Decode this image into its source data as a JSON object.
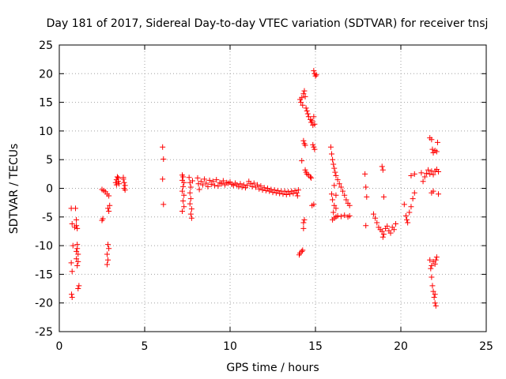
{
  "chart_data": {
    "type": "scatter",
    "title": "Day 181 of 2017, Sidereal Day-to-day VTEC variation (SDTVAR) for receiver tnsj",
    "xlabel": "GPS time / hours",
    "ylabel": "SDTVAR / TECUs",
    "xlim": [
      0,
      25
    ],
    "ylim": [
      -25,
      25
    ],
    "xticks": [
      0,
      5,
      10,
      15,
      20,
      25
    ],
    "yticks": [
      -25,
      -20,
      -15,
      -10,
      -5,
      0,
      5,
      10,
      15,
      20,
      25
    ],
    "grid": true,
    "marker": "+",
    "color": "#ff0000",
    "series": [
      {
        "name": "SDTVAR",
        "points": [
          [
            0.7,
            -3.5
          ],
          [
            0.75,
            -6.2
          ],
          [
            0.8,
            -10
          ],
          [
            0.7,
            -13
          ],
          [
            0.75,
            -14.5
          ],
          [
            0.72,
            -18.5
          ],
          [
            0.75,
            -19
          ],
          [
            0.95,
            -3.5
          ],
          [
            1.0,
            -5.5
          ],
          [
            1.0,
            -6.5
          ],
          [
            1.05,
            -7
          ],
          [
            0.9,
            -6.8
          ],
          [
            1.05,
            -10.5
          ],
          [
            1.1,
            -11.5
          ],
          [
            1.0,
            -12.3
          ],
          [
            1.1,
            -12.8
          ],
          [
            1.05,
            -13.5
          ],
          [
            1.15,
            -17
          ],
          [
            1.1,
            -17.5
          ],
          [
            1.05,
            -9.8
          ],
          [
            1.0,
            -11
          ],
          [
            2.5,
            -0.2
          ],
          [
            2.6,
            -0.4
          ],
          [
            2.7,
            -0.6
          ],
          [
            2.8,
            -1.0
          ],
          [
            2.9,
            -1.3
          ],
          [
            2.55,
            -5.3
          ],
          [
            2.5,
            -5.6
          ],
          [
            2.85,
            -3.5
          ],
          [
            2.9,
            -4.0
          ],
          [
            2.95,
            -3.0
          ],
          [
            2.85,
            -9.8
          ],
          [
            2.9,
            -10.5
          ],
          [
            2.8,
            -11.5
          ],
          [
            2.85,
            -12.5
          ],
          [
            2.8,
            -13.3
          ],
          [
            3.3,
            1.0
          ],
          [
            3.35,
            1.5
          ],
          [
            3.4,
            2.0
          ],
          [
            3.45,
            1.2
          ],
          [
            3.5,
            0.8
          ],
          [
            3.35,
            0.6
          ],
          [
            3.45,
            1.8
          ],
          [
            3.75,
            1.6
          ],
          [
            3.8,
            1.0
          ],
          [
            3.85,
            0.5
          ],
          [
            3.8,
            0.0
          ],
          [
            3.85,
            -0.3
          ],
          [
            3.75,
            1.9
          ],
          [
            6.05,
            7.2
          ],
          [
            6.1,
            5.1
          ],
          [
            6.05,
            1.6
          ],
          [
            6.1,
            -2.8
          ],
          [
            7.2,
            2.3
          ],
          [
            7.25,
            2.0
          ],
          [
            7.2,
            1.4
          ],
          [
            7.3,
            1.0
          ],
          [
            7.25,
            0.3
          ],
          [
            7.2,
            -0.5
          ],
          [
            7.3,
            -1.2
          ],
          [
            7.25,
            -2.2
          ],
          [
            7.3,
            -3.2
          ],
          [
            7.2,
            -4.0
          ],
          [
            7.6,
            1.9
          ],
          [
            7.65,
            1.0
          ],
          [
            7.7,
            0.2
          ],
          [
            7.65,
            -0.8
          ],
          [
            7.7,
            -1.8
          ],
          [
            7.65,
            -2.7
          ],
          [
            7.75,
            -3.6
          ],
          [
            7.7,
            -4.5
          ],
          [
            7.75,
            -5.2
          ],
          [
            7.8,
            1.3
          ],
          [
            8.1,
            1.8
          ],
          [
            8.15,
            0.8
          ],
          [
            8.2,
            -0.2
          ],
          [
            8.3,
            1.2
          ],
          [
            8.4,
            0.6
          ],
          [
            8.5,
            1.6
          ],
          [
            8.6,
            0.9
          ],
          [
            8.7,
            0.3
          ],
          [
            8.8,
            1.4
          ],
          [
            8.9,
            0.7
          ],
          [
            9.0,
            1.2
          ],
          [
            9.1,
            0.5
          ],
          [
            9.2,
            1.5
          ],
          [
            9.3,
            0.4
          ],
          [
            9.4,
            1.0
          ],
          [
            9.5,
            0.8
          ],
          [
            9.6,
            1.3
          ],
          [
            9.7,
            0.6
          ],
          [
            9.8,
            1.0
          ],
          [
            9.9,
            0.9
          ],
          [
            10.0,
            1.1
          ],
          [
            10.1,
            0.7
          ],
          [
            10.2,
            0.5
          ],
          [
            10.3,
            0.9
          ],
          [
            10.4,
            0.6
          ],
          [
            10.5,
            0.3
          ],
          [
            10.6,
            0.8
          ],
          [
            10.7,
            0.2
          ],
          [
            10.8,
            0.6
          ],
          [
            10.9,
            0.1
          ],
          [
            11.0,
            0.5
          ],
          [
            11.1,
            1.2
          ],
          [
            11.2,
            0.8
          ],
          [
            11.3,
            0.3
          ],
          [
            11.4,
            0.9
          ],
          [
            11.5,
            0.2
          ],
          [
            11.6,
            0.6
          ],
          [
            11.7,
            -0.1
          ],
          [
            11.8,
            0.4
          ],
          [
            11.9,
            -0.3
          ],
          [
            12.0,
            0.1
          ],
          [
            12.1,
            -0.4
          ],
          [
            12.2,
            0.0
          ],
          [
            12.3,
            -0.5
          ],
          [
            12.4,
            -0.2
          ],
          [
            12.5,
            -0.7
          ],
          [
            12.6,
            -0.3
          ],
          [
            12.7,
            -0.8
          ],
          [
            12.8,
            -0.4
          ],
          [
            12.9,
            -0.9
          ],
          [
            13.0,
            -0.5
          ],
          [
            13.1,
            -1.0
          ],
          [
            13.2,
            -0.5
          ],
          [
            13.3,
            -1.1
          ],
          [
            13.4,
            -0.6
          ],
          [
            13.5,
            -1.0
          ],
          [
            13.6,
            -0.5
          ],
          [
            13.7,
            -0.9
          ],
          [
            13.8,
            -0.4
          ],
          [
            13.9,
            -0.8
          ],
          [
            14.0,
            -0.3
          ],
          [
            13.95,
            -1.3
          ],
          [
            14.1,
            15.5
          ],
          [
            14.15,
            15.0
          ],
          [
            14.2,
            15.8
          ],
          [
            14.25,
            14.5
          ],
          [
            14.3,
            16.5
          ],
          [
            14.35,
            17.0
          ],
          [
            14.4,
            16.0
          ],
          [
            14.45,
            14.0
          ],
          [
            14.5,
            13.5
          ],
          [
            14.55,
            13.0
          ],
          [
            14.6,
            12.5
          ],
          [
            14.7,
            12.0
          ],
          [
            14.75,
            11.5
          ],
          [
            14.8,
            11.8
          ],
          [
            14.85,
            11.0
          ],
          [
            14.9,
            12.5
          ],
          [
            14.95,
            11.2
          ],
          [
            14.3,
            8.3
          ],
          [
            14.35,
            7.8
          ],
          [
            14.4,
            7.5
          ],
          [
            14.2,
            4.8
          ],
          [
            14.4,
            3.2
          ],
          [
            14.45,
            2.8
          ],
          [
            14.5,
            2.5
          ],
          [
            14.6,
            2.3
          ],
          [
            14.7,
            2.0
          ],
          [
            14.75,
            1.8
          ],
          [
            14.8,
            -3.0
          ],
          [
            14.9,
            -2.8
          ],
          [
            14.85,
            7.6
          ],
          [
            14.9,
            7.2
          ],
          [
            14.95,
            6.8
          ],
          [
            14.3,
            -6.0
          ],
          [
            14.35,
            -5.5
          ],
          [
            14.3,
            -7.0
          ],
          [
            14.1,
            -11.3
          ],
          [
            14.2,
            -11.0
          ],
          [
            14.25,
            -10.8
          ],
          [
            14.05,
            -11.6
          ],
          [
            14.9,
            20.5
          ],
          [
            14.95,
            20.0
          ],
          [
            15.0,
            19.6
          ],
          [
            15.05,
            19.8
          ],
          [
            15.9,
            7.2
          ],
          [
            15.95,
            6.0
          ],
          [
            16.0,
            5.0
          ],
          [
            16.05,
            4.2
          ],
          [
            16.1,
            3.5
          ],
          [
            16.15,
            2.8
          ],
          [
            16.2,
            2.2
          ],
          [
            16.3,
            1.5
          ],
          [
            16.4,
            0.8
          ],
          [
            16.5,
            0.2
          ],
          [
            16.6,
            -0.5
          ],
          [
            16.7,
            -1.2
          ],
          [
            16.8,
            -2.0
          ],
          [
            16.9,
            -2.6
          ],
          [
            17.0,
            -3.0
          ],
          [
            16.0,
            -5.5
          ],
          [
            16.1,
            -5.2
          ],
          [
            16.2,
            -5.0
          ],
          [
            16.3,
            -4.8
          ],
          [
            16.5,
            -4.9
          ],
          [
            16.7,
            -4.7
          ],
          [
            16.9,
            -5.0
          ],
          [
            17.0,
            -4.8
          ],
          [
            15.95,
            -1.0
          ],
          [
            16.0,
            -2.0
          ],
          [
            16.1,
            -3.0
          ],
          [
            16.05,
            -4.2
          ],
          [
            16.2,
            -3.5
          ],
          [
            16.1,
            0.5
          ],
          [
            16.2,
            -1.2
          ],
          [
            17.9,
            2.5
          ],
          [
            17.95,
            0.2
          ],
          [
            18.0,
            -1.5
          ],
          [
            17.95,
            -6.5
          ],
          [
            18.4,
            -4.5
          ],
          [
            18.5,
            -5.2
          ],
          [
            18.6,
            -6.0
          ],
          [
            18.7,
            -6.8
          ],
          [
            18.8,
            -7.2
          ],
          [
            18.9,
            -7.5
          ],
          [
            19.0,
            -8.0
          ],
          [
            19.1,
            -7.0
          ],
          [
            19.2,
            -6.6
          ],
          [
            19.3,
            -7.4
          ],
          [
            19.4,
            -7.8
          ],
          [
            19.5,
            -6.8
          ],
          [
            19.6,
            -7.2
          ],
          [
            19.7,
            -6.2
          ],
          [
            18.9,
            3.8
          ],
          [
            18.95,
            3.2
          ],
          [
            19.0,
            -1.5
          ],
          [
            18.95,
            -8.5
          ],
          [
            20.2,
            -2.8
          ],
          [
            20.3,
            -4.8
          ],
          [
            20.35,
            -5.5
          ],
          [
            20.4,
            -6.0
          ],
          [
            20.5,
            -4.2
          ],
          [
            20.6,
            -3.2
          ],
          [
            20.7,
            -1.8
          ],
          [
            20.8,
            -0.8
          ],
          [
            20.6,
            2.2
          ],
          [
            20.8,
            2.5
          ],
          [
            21.2,
            2.7
          ],
          [
            21.3,
            1.2
          ],
          [
            21.4,
            2.0
          ],
          [
            21.5,
            2.6
          ],
          [
            21.6,
            3.2
          ],
          [
            21.7,
            2.5
          ],
          [
            21.8,
            3.0
          ],
          [
            21.9,
            2.4
          ],
          [
            22.0,
            3.0
          ],
          [
            22.1,
            3.3
          ],
          [
            22.2,
            2.9
          ],
          [
            21.7,
            8.8
          ],
          [
            21.8,
            8.5
          ],
          [
            21.85,
            6.8
          ],
          [
            21.9,
            6.2
          ],
          [
            22.0,
            6.6
          ],
          [
            22.1,
            6.4
          ],
          [
            22.15,
            8.0
          ],
          [
            21.8,
            -0.8
          ],
          [
            21.9,
            -0.5
          ],
          [
            22.2,
            -1.0
          ],
          [
            21.7,
            -12.5
          ],
          [
            21.75,
            -14.0
          ],
          [
            21.8,
            -15.5
          ],
          [
            21.85,
            -17.0
          ],
          [
            21.9,
            -18.0
          ],
          [
            21.95,
            -19.0
          ],
          [
            22.0,
            -18.5
          ],
          [
            21.8,
            -13.5
          ],
          [
            21.9,
            -12.8
          ],
          [
            22.0,
            -13.2
          ],
          [
            22.05,
            -12.5
          ],
          [
            22.1,
            -12.0
          ],
          [
            22.0,
            -20.0
          ],
          [
            22.05,
            -20.5
          ]
        ]
      }
    ]
  }
}
